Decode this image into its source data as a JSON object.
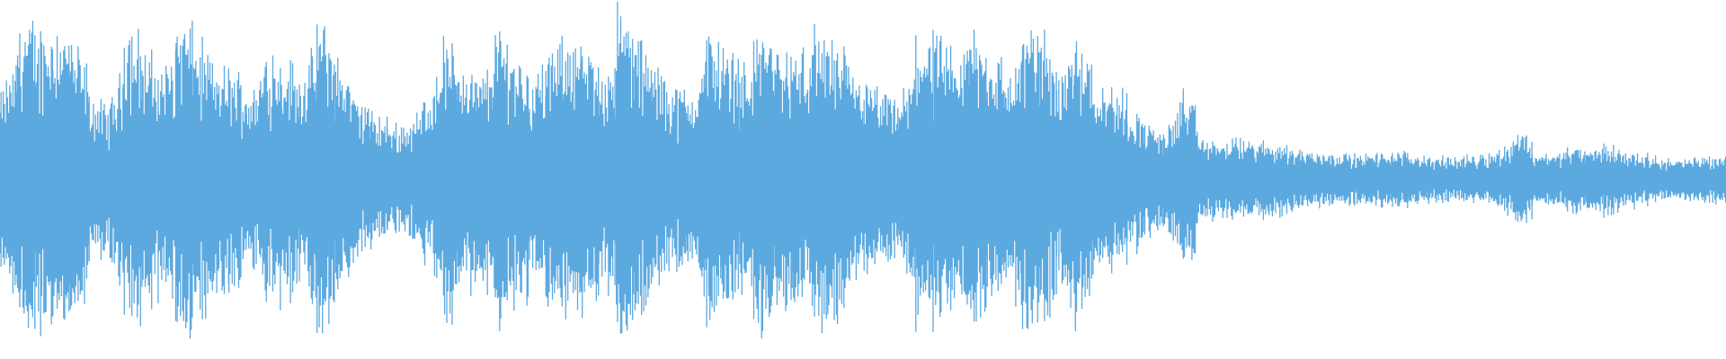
{
  "waveform": {
    "color": "#5ca9e0",
    "envelope": [
      0.45,
      0.85,
      0.8,
      0.85,
      0.75,
      0.45,
      0.35,
      0.85,
      0.7,
      0.55,
      0.88,
      0.75,
      0.6,
      0.6,
      0.45,
      0.7,
      0.65,
      0.55,
      0.85,
      0.65,
      0.45,
      0.35,
      0.3,
      0.3,
      0.45,
      0.75,
      0.65,
      0.5,
      0.8,
      0.7,
      0.55,
      0.65,
      0.8,
      0.7,
      0.55,
      0.9,
      0.75,
      0.6,
      0.5,
      0.45,
      0.8,
      0.7,
      0.6,
      0.85,
      0.7,
      0.65,
      0.8,
      0.75,
      0.6,
      0.5,
      0.45,
      0.4,
      0.8,
      0.75,
      0.6,
      0.85,
      0.7,
      0.55,
      0.8,
      0.8,
      0.6,
      0.8,
      0.55,
      0.5,
      0.4,
      0.3,
      0.25,
      0.5,
      0.22,
      0.2,
      0.22,
      0.2,
      0.2,
      0.18,
      0.15,
      0.15,
      0.14,
      0.13,
      0.14,
      0.15,
      0.14,
      0.12,
      0.12,
      0.12,
      0.14,
      0.15,
      0.28,
      0.15,
      0.13,
      0.18,
      0.15,
      0.2,
      0.15,
      0.14,
      0.12,
      0.1,
      0.12,
      0.13
    ]
  }
}
